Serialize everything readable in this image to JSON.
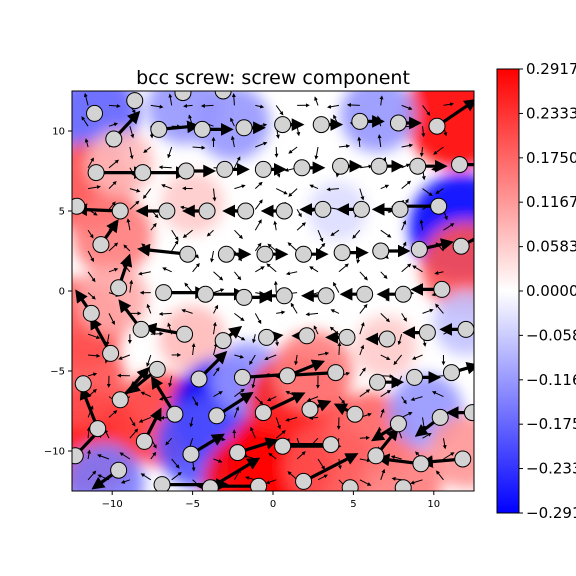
{
  "chart_data": {
    "type": "heatmap",
    "title": "bcc screw: screw component",
    "xlabel": "",
    "ylabel": "",
    "xlim": [
      -12.5,
      12.5
    ],
    "ylim": [
      -12.5,
      12.5
    ],
    "x_ticks": [
      -10,
      -5,
      0,
      5,
      10
    ],
    "y_ticks": [
      -10,
      -5,
      0,
      5,
      10
    ],
    "x_tick_labels": [
      "−10",
      "−5",
      "0",
      "5",
      "10"
    ],
    "y_tick_labels": [
      "−10",
      "−5",
      "0",
      "5",
      "10"
    ],
    "colorbar": {
      "colormap": "bwr",
      "vmin": -0.2917,
      "vmax": 0.2917,
      "ticks": [
        0.2917,
        0.2333,
        0.175,
        0.1167,
        0.0583,
        0.0,
        -0.0583,
        -0.1167,
        -0.175,
        -0.2333,
        -0.2917
      ],
      "tick_labels": [
        "0.2917",
        "0.2333",
        "0.1750",
        "0.1167",
        "0.0583",
        "0.0000",
        "−0.0583",
        "−0.1167",
        "−0.1750",
        "−0.2333",
        "−0.2917"
      ]
    },
    "colors": {
      "positive": "#ff0000",
      "negative": "#0000ff",
      "zero": "#ffffff",
      "atom_fill": "#d3d3d3",
      "atom_edge": "#000000",
      "arrow": "#000000"
    },
    "heat_blobs": [
      {
        "x": 11.5,
        "y": 11.0,
        "v": 0.29
      },
      {
        "x": 11.8,
        "y": 4.0,
        "v": -0.29
      },
      {
        "x": 12.0,
        "y": 1.5,
        "v": 0.2
      },
      {
        "x": -11.0,
        "y": 11.0,
        "v": -0.18
      },
      {
        "x": -5.5,
        "y": 11.5,
        "v": -0.12
      },
      {
        "x": -2.5,
        "y": 10.5,
        "v": -0.12
      },
      {
        "x": 6.5,
        "y": 11.0,
        "v": -0.12
      },
      {
        "x": -11.5,
        "y": 6.5,
        "v": 0.2
      },
      {
        "x": -10.0,
        "y": 3.5,
        "v": 0.15
      },
      {
        "x": -9.5,
        "y": 8.0,
        "v": 0.08
      },
      {
        "x": -5.0,
        "y": 5.5,
        "v": 0.06
      },
      {
        "x": -12.0,
        "y": -2.0,
        "v": 0.2
      },
      {
        "x": -10.0,
        "y": -0.5,
        "v": 0.1
      },
      {
        "x": -5.0,
        "y": -3.0,
        "v": 0.08
      },
      {
        "x": -11.5,
        "y": -9.5,
        "v": 0.28
      },
      {
        "x": -12.0,
        "y": -5.5,
        "v": 0.2
      },
      {
        "x": -7.0,
        "y": -8.0,
        "v": 0.22
      },
      {
        "x": -10.5,
        "y": -12.0,
        "v": -0.15
      },
      {
        "x": -3.0,
        "y": -7.5,
        "v": -0.29
      },
      {
        "x": -4.5,
        "y": -9.5,
        "v": -0.2
      },
      {
        "x": -1.5,
        "y": -5.5,
        "v": -0.12
      },
      {
        "x": 0.5,
        "y": -10.5,
        "v": 0.29
      },
      {
        "x": 1.5,
        "y": -7.0,
        "v": 0.25
      },
      {
        "x": -1.0,
        "y": -12.0,
        "v": 0.29
      },
      {
        "x": 3.5,
        "y": -11.0,
        "v": 0.2
      },
      {
        "x": 2.5,
        "y": -5.0,
        "v": 0.15
      },
      {
        "x": 6.0,
        "y": -9.0,
        "v": 0.18
      },
      {
        "x": 8.0,
        "y": -12.0,
        "v": 0.15
      },
      {
        "x": 9.5,
        "y": -7.5,
        "v": -0.12
      },
      {
        "x": 12.0,
        "y": -10.0,
        "v": 0.12
      },
      {
        "x": 12.0,
        "y": -2.0,
        "v": -0.07
      },
      {
        "x": 7.0,
        "y": -3.5,
        "v": 0.06
      },
      {
        "x": 4.0,
        "y": 5.0,
        "v": -0.04
      }
    ],
    "atoms": [
      {
        "x": -11.1,
        "y": 11.1,
        "dx": 0,
        "dy": 0
      },
      {
        "x": -8.6,
        "y": 11.9,
        "dx": 0,
        "dy": 0
      },
      {
        "x": -5.6,
        "y": 12.4,
        "dx": 0,
        "dy": 0
      },
      {
        "x": -3.1,
        "y": 12.5,
        "dx": 0,
        "dy": 0
      },
      {
        "x": -9.9,
        "y": 9.5,
        "dx": 1.4,
        "dy": 1.5
      },
      {
        "x": -7.1,
        "y": 10.1,
        "dx": 2.2,
        "dy": 0.2
      },
      {
        "x": -4.4,
        "y": 10.1,
        "dx": 1.6,
        "dy": 0.0
      },
      {
        "x": -1.8,
        "y": 10.2,
        "dx": 1.0,
        "dy": 0
      },
      {
        "x": 0.6,
        "y": 10.4,
        "dx": 1.0,
        "dy": 0
      },
      {
        "x": 3.0,
        "y": 10.4,
        "dx": 1.0,
        "dy": 0
      },
      {
        "x": 5.4,
        "y": 10.6,
        "dx": 1.2,
        "dy": 0
      },
      {
        "x": 7.8,
        "y": 10.5,
        "dx": 1.1,
        "dy": 0
      },
      {
        "x": 10.2,
        "y": 10.3,
        "dx": 2.2,
        "dy": 1.5
      },
      {
        "x": -11.0,
        "y": 7.4,
        "dx": 2.8,
        "dy": 0
      },
      {
        "x": -8.1,
        "y": 7.4,
        "dx": 2.5,
        "dy": 0
      },
      {
        "x": -5.4,
        "y": 7.5,
        "dx": 1.5,
        "dy": 0
      },
      {
        "x": -3.0,
        "y": 7.6,
        "dx": 1.2,
        "dy": 0
      },
      {
        "x": -0.6,
        "y": 7.6,
        "dx": 1.1,
        "dy": 0
      },
      {
        "x": 1.8,
        "y": 7.7,
        "dx": 1.1,
        "dy": 0
      },
      {
        "x": 4.2,
        "y": 7.8,
        "dx": 1.0,
        "dy": 0
      },
      {
        "x": 6.6,
        "y": 7.8,
        "dx": 1.2,
        "dy": 0
      },
      {
        "x": 9.0,
        "y": 7.8,
        "dx": 1.5,
        "dy": 0
      },
      {
        "x": 11.6,
        "y": 7.9,
        "dx": 2.4,
        "dy": 0
      },
      {
        "x": -12.2,
        "y": 5.3,
        "dx": -2.6,
        "dy": 0.3
      },
      {
        "x": -9.5,
        "y": 5.0,
        "dx": -2.5,
        "dy": 0.1
      },
      {
        "x": -6.6,
        "y": 5.0,
        "dx": -1.6,
        "dy": 0
      },
      {
        "x": -4.1,
        "y": 5.0,
        "dx": -1.2,
        "dy": 0
      },
      {
        "x": -1.7,
        "y": 5.0,
        "dx": -1.1,
        "dy": 0
      },
      {
        "x": 0.7,
        "y": 5.0,
        "dx": -1.1,
        "dy": 0
      },
      {
        "x": 3.1,
        "y": 5.1,
        "dx": -1.1,
        "dy": 0
      },
      {
        "x": 5.5,
        "y": 5.1,
        "dx": -1.2,
        "dy": 0
      },
      {
        "x": 7.9,
        "y": 5.1,
        "dx": -1.4,
        "dy": 0
      },
      {
        "x": 10.3,
        "y": 5.3,
        "dx": -2.6,
        "dy": 0
      },
      {
        "x": -10.7,
        "y": 2.9,
        "dx": 0.9,
        "dy": 1.3
      },
      {
        "x": -5.3,
        "y": 2.3,
        "dx": -2.8,
        "dy": 0.3
      },
      {
        "x": -2.9,
        "y": 2.3,
        "dx": 1.2,
        "dy": 0
      },
      {
        "x": -0.5,
        "y": 2.3,
        "dx": 1.1,
        "dy": 0
      },
      {
        "x": 1.9,
        "y": 2.3,
        "dx": 1.2,
        "dy": 0
      },
      {
        "x": 4.3,
        "y": 2.4,
        "dx": 1.3,
        "dy": 0
      },
      {
        "x": 6.7,
        "y": 2.5,
        "dx": 1.5,
        "dy": 0
      },
      {
        "x": 9.1,
        "y": 2.6,
        "dx": 1.8,
        "dy": 0.4
      },
      {
        "x": 11.7,
        "y": 2.8,
        "dx": 1.5,
        "dy": 0.8
      },
      {
        "x": -9.6,
        "y": 0.2,
        "dx": 0.6,
        "dy": 1.8
      },
      {
        "x": -6.8,
        "y": -0.1,
        "dx": 2.4,
        "dy": 0
      },
      {
        "x": -4.2,
        "y": -0.2,
        "dx": 2.2,
        "dy": 0
      },
      {
        "x": -1.8,
        "y": -0.4,
        "dx": 1.4,
        "dy": 0
      },
      {
        "x": 0.7,
        "y": -0.3,
        "dx": -1.2,
        "dy": 0
      },
      {
        "x": 3.3,
        "y": -0.3,
        "dx": -1.2,
        "dy": 0
      },
      {
        "x": 5.7,
        "y": -0.2,
        "dx": -1.2,
        "dy": 0
      },
      {
        "x": 8.1,
        "y": -0.2,
        "dx": -1.3,
        "dy": 0
      },
      {
        "x": 10.5,
        "y": 0.1,
        "dx": -1.6,
        "dy": 0
      },
      {
        "x": -11.3,
        "y": -1.4,
        "dx": -0.8,
        "dy": 1.2
      },
      {
        "x": -8.2,
        "y": -2.4,
        "dx": -1.2,
        "dy": 1.6
      },
      {
        "x": -5.5,
        "y": -2.7,
        "dx": -2.2,
        "dy": 0.4
      },
      {
        "x": -3.1,
        "y": -3.1,
        "dx": 0.9,
        "dy": 0.7
      },
      {
        "x": -0.4,
        "y": -2.9,
        "dx": 0.7,
        "dy": 0.1
      },
      {
        "x": 2.1,
        "y": -2.8,
        "dx": -0.6,
        "dy": 0
      },
      {
        "x": 4.6,
        "y": -2.9,
        "dx": -1.0,
        "dy": 0
      },
      {
        "x": 7.1,
        "y": -3.0,
        "dx": -1.0,
        "dy": 0
      },
      {
        "x": 9.6,
        "y": -2.6,
        "dx": -1.2,
        "dy": 0
      },
      {
        "x": 12.0,
        "y": -2.4,
        "dx": -1.3,
        "dy": 0
      },
      {
        "x": -10.1,
        "y": -3.9,
        "dx": -1.1,
        "dy": 2.0
      },
      {
        "x": -11.8,
        "y": -5.8,
        "dx": 0,
        "dy": 0
      },
      {
        "x": -7.2,
        "y": -4.9,
        "dx": -1.6,
        "dy": -1.3
      },
      {
        "x": -4.6,
        "y": -5.5,
        "dx": 1.5,
        "dy": 1.5
      },
      {
        "x": -1.9,
        "y": -5.4,
        "dx": 3.0,
        "dy": 0.2
      },
      {
        "x": 0.9,
        "y": -5.3,
        "dx": 2.0,
        "dy": 0.8
      },
      {
        "x": 3.9,
        "y": -5.1,
        "dx": -3.5,
        "dy": -0.2
      },
      {
        "x": 6.5,
        "y": -5.7,
        "dx": 1.3,
        "dy": 0
      },
      {
        "x": 8.8,
        "y": -5.4,
        "dx": 1.3,
        "dy": 0
      },
      {
        "x": 11.1,
        "y": -5.1,
        "dx": 1.4,
        "dy": 0.4
      },
      {
        "x": -9.5,
        "y": -6.8,
        "dx": 1.6,
        "dy": 1.8
      },
      {
        "x": -6.1,
        "y": -7.7,
        "dx": -1.3,
        "dy": 2.1
      },
      {
        "x": -3.5,
        "y": -7.8,
        "dx": 2.0,
        "dy": 1.3
      },
      {
        "x": -0.6,
        "y": -7.6,
        "dx": 2.3,
        "dy": 1.1
      },
      {
        "x": 2.3,
        "y": -7.4,
        "dx": 1.0,
        "dy": 0.4
      },
      {
        "x": 5.1,
        "y": -7.7,
        "dx": -1.0,
        "dy": 0.5
      },
      {
        "x": 7.8,
        "y": -8.3,
        "dx": -1.4,
        "dy": -0.9
      },
      {
        "x": 10.4,
        "y": -7.9,
        "dx": -1.3,
        "dy": -1.0
      },
      {
        "x": 12.4,
        "y": -7.6,
        "dx": -1.3,
        "dy": 0
      },
      {
        "x": -10.9,
        "y": -8.6,
        "dx": -0.9,
        "dy": 2.3
      },
      {
        "x": -8.0,
        "y": -9.4,
        "dx": 0.9,
        "dy": 1.8
      },
      {
        "x": -5.1,
        "y": -10.2,
        "dx": 1.8,
        "dy": 1.1
      },
      {
        "x": -2.2,
        "y": -10.1,
        "dx": 2.2,
        "dy": 0.7
      },
      {
        "x": 0.6,
        "y": -9.7,
        "dx": 3.3,
        "dy": 0
      },
      {
        "x": 3.6,
        "y": -9.6,
        "dx": -3.0,
        "dy": 0
      },
      {
        "x": 6.4,
        "y": -10.3,
        "dx": 1.2,
        "dy": 1.5
      },
      {
        "x": 9.2,
        "y": -10.8,
        "dx": -2.4,
        "dy": 0.3
      },
      {
        "x": 11.8,
        "y": -10.5,
        "dx": -2.3,
        "dy": -0.2
      },
      {
        "x": -12.3,
        "y": -10.3,
        "dx": 1.6,
        "dy": 1.7
      },
      {
        "x": -9.6,
        "y": -11.2,
        "dx": -1.4,
        "dy": -1.0
      },
      {
        "x": -6.9,
        "y": -12.1,
        "dx": 3.8,
        "dy": 0
      },
      {
        "x": -3.9,
        "y": -12.3,
        "dx": 2.8,
        "dy": 1.7
      },
      {
        "x": -0.9,
        "y": -12.2,
        "dx": -3.5,
        "dy": 0
      },
      {
        "x": 1.9,
        "y": -11.9,
        "dx": 3.1,
        "dy": 1.6
      },
      {
        "x": 4.8,
        "y": -12.3,
        "dx": 0,
        "dy": 0
      },
      {
        "x": 8.1,
        "y": -12.3,
        "dx": 0,
        "dy": 0
      }
    ],
    "grid_arrows": {
      "x_start": -11.5,
      "x_end": 11.5,
      "x_step": 1.3,
      "y_start": -11.8,
      "y_end": 11.8,
      "y_step": 1.3
    }
  }
}
